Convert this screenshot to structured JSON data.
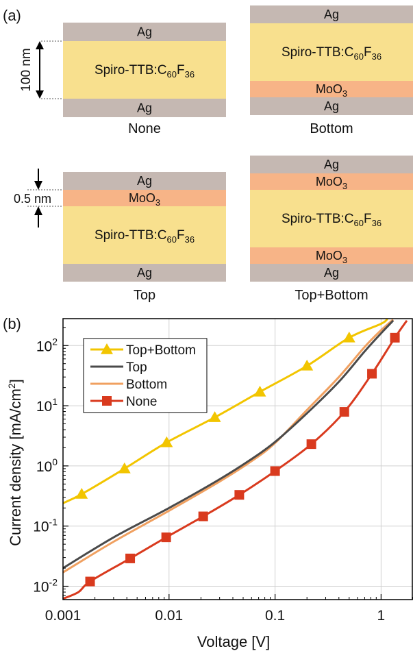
{
  "panel_a": {
    "label": "(a)",
    "colors": {
      "ag": "#c5b8b2",
      "spiro": "#f8e08e",
      "moo3": "#f7b487"
    },
    "dims": {
      "thickness_100": "100 nm",
      "thickness_05": "0.5 nm"
    },
    "stacks": [
      {
        "caption": "None",
        "layers": [
          {
            "type": "ag",
            "label": "Ag",
            "sub": ""
          },
          {
            "type": "spiro",
            "label": "Spiro-TTB:C",
            "sub": "60",
            "label2": "F",
            "sub2": "36"
          },
          {
            "type": "ag",
            "label": "Ag",
            "sub": ""
          }
        ]
      },
      {
        "caption": "Bottom",
        "layers": [
          {
            "type": "ag",
            "label": "Ag",
            "sub": ""
          },
          {
            "type": "spiro",
            "label": "Spiro-TTB:C",
            "sub": "60",
            "label2": "F",
            "sub2": "36"
          },
          {
            "type": "moo3",
            "label": "MoO",
            "sub": "3"
          },
          {
            "type": "ag",
            "label": "Ag",
            "sub": ""
          }
        ]
      },
      {
        "caption": "Top",
        "layers": [
          {
            "type": "ag",
            "label": "Ag",
            "sub": ""
          },
          {
            "type": "moo3",
            "label": "MoO",
            "sub": "3"
          },
          {
            "type": "spiro",
            "label": "Spiro-TTB:C",
            "sub": "60",
            "label2": "F",
            "sub2": "36"
          },
          {
            "type": "ag",
            "label": "Ag",
            "sub": ""
          }
        ]
      },
      {
        "caption": "Top+Bottom",
        "layers": [
          {
            "type": "ag",
            "label": "Ag",
            "sub": ""
          },
          {
            "type": "moo3",
            "label": "MoO",
            "sub": "3"
          },
          {
            "type": "spiro",
            "label": "Spiro-TTB:C",
            "sub": "60",
            "label2": "F",
            "sub2": "36"
          },
          {
            "type": "moo3",
            "label": "MoO",
            "sub": "3"
          },
          {
            "type": "ag",
            "label": "Ag",
            "sub": ""
          }
        ]
      }
    ]
  },
  "chart_data": {
    "type": "line",
    "panel_label": "(b)",
    "xlabel": "Voltage [V]",
    "ylabel": "Current density [mA/cm",
    "ylabel_sup": "2",
    "ylabel_end": "]",
    "xscale": "log",
    "yscale": "log",
    "xlim": [
      0.001,
      2
    ],
    "ylim": [
      0.006,
      280
    ],
    "x_ticks": [
      {
        "value": 0.001,
        "label": "0.001"
      },
      {
        "value": 0.01,
        "label": "0.01"
      },
      {
        "value": 0.1,
        "label": "0.1"
      },
      {
        "value": 1,
        "label": "1"
      }
    ],
    "y_ticks": [
      {
        "value": 0.01,
        "base": "10",
        "exp": "-2"
      },
      {
        "value": 0.1,
        "base": "10",
        "exp": "-1"
      },
      {
        "value": 1,
        "base": "10",
        "exp": "0"
      },
      {
        "value": 10,
        "base": "10",
        "exp": "1"
      },
      {
        "value": 100,
        "base": "10",
        "exp": "2"
      }
    ],
    "grid": true,
    "legend_position": "top-left",
    "series": [
      {
        "name": "Top+Bottom",
        "color": "#f2c500",
        "marker": "triangle",
        "x": [
          0.001,
          0.0015,
          0.0038,
          0.0095,
          0.027,
          0.072,
          0.2,
          0.5,
          1.0,
          1.15
        ],
        "y": [
          0.24,
          0.34,
          0.9,
          2.45,
          6.4,
          17,
          46,
          135,
          230,
          280
        ],
        "markers_x": [
          0.0015,
          0.0038,
          0.0095,
          0.027,
          0.072,
          0.2,
          0.5
        ],
        "markers_y": [
          0.34,
          0.9,
          2.45,
          6.4,
          17,
          46,
          135
        ]
      },
      {
        "name": "Top",
        "color": "#4a4a4a",
        "marker": "none",
        "x": [
          0.001,
          0.003,
          0.01,
          0.03,
          0.06,
          0.1,
          0.2,
          0.4,
          0.7,
          1.0,
          1.3
        ],
        "y": [
          0.02,
          0.065,
          0.2,
          0.6,
          1.3,
          2.5,
          7.5,
          25,
          80,
          160,
          260
        ],
        "markers_x": [],
        "markers_y": []
      },
      {
        "name": "Bottom",
        "color": "#f0a060",
        "marker": "none",
        "x": [
          0.001,
          0.003,
          0.01,
          0.03,
          0.06,
          0.1,
          0.2,
          0.4,
          0.7,
          1.0,
          1.3
        ],
        "y": [
          0.017,
          0.055,
          0.18,
          0.55,
          1.2,
          2.4,
          8.5,
          30,
          95,
          180,
          270
        ],
        "markers_x": [],
        "markers_y": []
      },
      {
        "name": "None",
        "color": "#d93a1e",
        "marker": "square",
        "x": [
          0.001,
          0.0014,
          0.0018,
          0.0043,
          0.0094,
          0.021,
          0.046,
          0.1,
          0.22,
          0.45,
          0.82,
          1.35,
          1.75
        ],
        "y": [
          0.0062,
          0.008,
          0.012,
          0.029,
          0.065,
          0.145,
          0.33,
          0.82,
          2.3,
          7.9,
          34,
          135,
          260
        ],
        "markers_x": [
          0.0018,
          0.0043,
          0.0094,
          0.021,
          0.046,
          0.1,
          0.22,
          0.45,
          0.82,
          1.35
        ],
        "markers_y": [
          0.012,
          0.029,
          0.065,
          0.145,
          0.33,
          0.82,
          2.3,
          7.9,
          34,
          135
        ]
      }
    ]
  }
}
